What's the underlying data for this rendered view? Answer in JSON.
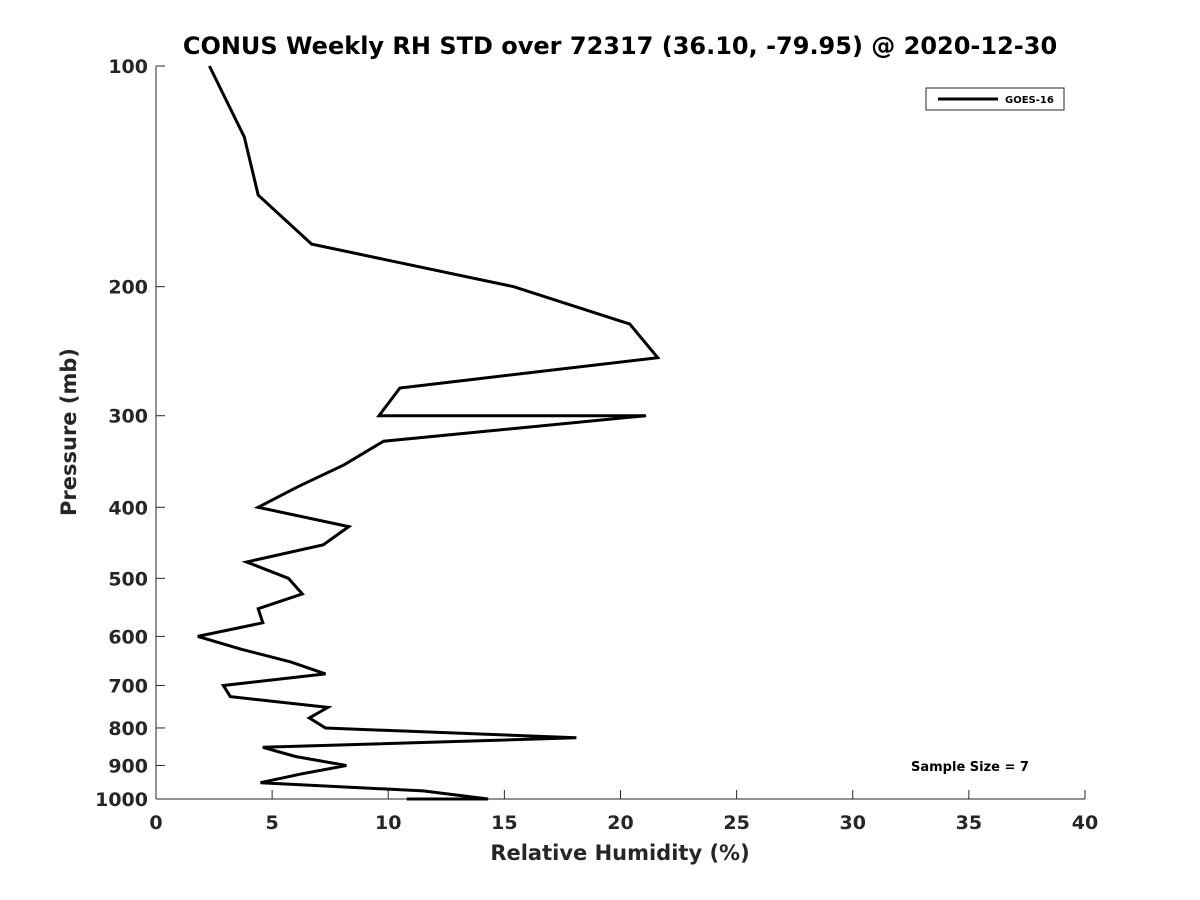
{
  "chart_data": {
    "type": "line",
    "title": "CONUS Weekly RH STD over 72317 (36.10, -79.95) @ 2020-12-30",
    "xlabel": "Relative Humidity (%)",
    "ylabel": "Pressure (mb)",
    "xlim": [
      0,
      40
    ],
    "ylim": [
      100,
      1000
    ],
    "y_scale": "log",
    "y_reversed": true,
    "grid": false,
    "xticks": [
      0,
      5,
      10,
      15,
      20,
      25,
      30,
      35,
      40
    ],
    "yticks": [
      100,
      200,
      300,
      400,
      500,
      600,
      700,
      800,
      900,
      1000
    ],
    "legend": {
      "placement": "top-right",
      "entries": [
        "GOES-16"
      ]
    },
    "annotation": "Sample Size = 7",
    "series": [
      {
        "name": "GOES-16",
        "color": "#000000",
        "x": [
          2.3,
          3.8,
          4.4,
          6.7,
          15.4,
          20.4,
          21.6,
          10.5,
          9.6,
          21.1,
          9.8,
          8.1,
          6.1,
          4.4,
          8.3,
          7.2,
          3.9,
          5.7,
          6.3,
          4.4,
          4.6,
          1.8,
          3.7,
          5.8,
          7.3,
          2.9,
          3.2,
          7.4,
          6.6,
          7.3,
          18.1,
          4.6,
          6.0,
          8.2,
          6.2,
          4.5,
          11.5,
          14.3,
          10.8,
          10.9,
          11.6
        ],
        "y": [
          100,
          125,
          150,
          175,
          200,
          225,
          250,
          275,
          300,
          300,
          325,
          350,
          375,
          400,
          425,
          450,
          475,
          500,
          525,
          550,
          575,
          600,
          625,
          650,
          675,
          700,
          725,
          750,
          775,
          800,
          825,
          850,
          875,
          900,
          925,
          950,
          975,
          1000,
          1000,
          1000,
          1000
        ]
      }
    ]
  }
}
